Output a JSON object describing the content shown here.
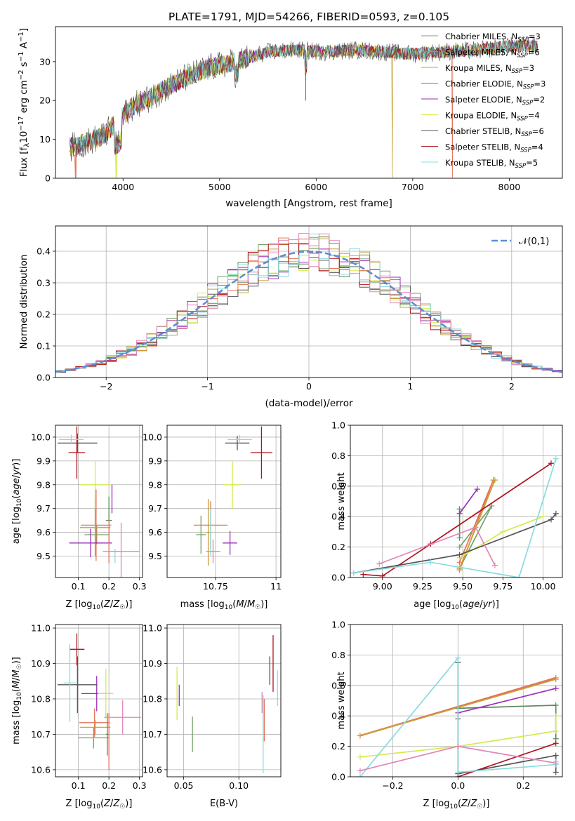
{
  "title": "PLATE=1791, MJD=54266, FIBERID=0593, z=0.105",
  "series": [
    {
      "name": "Chabrier MILES, N_SSP=3",
      "nssp": "3",
      "lib": "Chabrier MILES",
      "color": "#77a36a"
    },
    {
      "name": "Salpeter MILES, N_SSP=6",
      "nssp": "6",
      "lib": "Salpeter MILES",
      "color": "#e3735a"
    },
    {
      "name": "Kroupa MILES, N_SSP=3",
      "nssp": "3",
      "lib": "Kroupa MILES",
      "color": "#c7a136"
    },
    {
      "name": "Chabrier ELODIE, N_SSP=3",
      "nssp": "3",
      "lib": "Chabrier ELODIE",
      "color": "#5b8c5a"
    },
    {
      "name": "Salpeter ELODIE, N_SSP=2",
      "nssp": "2",
      "lib": "Salpeter ELODIE",
      "color": "#9b2fb8"
    },
    {
      "name": "Kroupa ELODIE, N_SSP=4",
      "nssp": "4",
      "lib": "Kroupa ELODIE",
      "color": "#d6ea4e"
    },
    {
      "name": "Chabrier STELIB, N_SSP=6",
      "nssp": "6",
      "lib": "Chabrier STELIB",
      "color": "#555555"
    },
    {
      "name": "Salpeter STELIB, N_SSP=4",
      "nssp": "4",
      "lib": "Salpeter STELIB",
      "color": "#b0131b"
    },
    {
      "name": "Kroupa STELIB, N_SSP=5",
      "nssp": "5",
      "lib": "Kroupa STELIB",
      "color": "#8adbe0"
    }
  ],
  "chart_data": [
    {
      "id": "spectrum",
      "type": "line",
      "xlabel": "wavelength [Angstrom, rest frame]",
      "ylabel": "Flux [f_λ10^-17 erg cm^-2 s^-1 A^-1]",
      "xlim": [
        3300,
        8550
      ],
      "ylim": [
        0,
        39
      ],
      "xticks": [
        4000,
        5000,
        6000,
        7000,
        8000
      ],
      "yticks": [
        0,
        10,
        20,
        30
      ],
      "grid": false,
      "legend": "upper right",
      "continuum": [
        [
          3450,
          8
        ],
        [
          3600,
          9
        ],
        [
          3800,
          11
        ],
        [
          3950,
          15
        ],
        [
          4100,
          18.5
        ],
        [
          4300,
          21
        ],
        [
          4500,
          24
        ],
        [
          4700,
          26.5
        ],
        [
          4900,
          28.5
        ],
        [
          5100,
          29.5
        ],
        [
          5300,
          31
        ],
        [
          5500,
          32.5
        ],
        [
          5800,
          33
        ],
        [
          6100,
          32.5
        ],
        [
          6400,
          33
        ],
        [
          6700,
          32.5
        ],
        [
          7000,
          32
        ],
        [
          7300,
          32.5
        ],
        [
          7700,
          33
        ],
        [
          8000,
          34
        ],
        [
          8300,
          34
        ]
      ],
      "dropouts": [
        {
          "series": 1,
          "x": 3510
        },
        {
          "series": 5,
          "x": 3930
        },
        {
          "series": 2,
          "x": 6790
        },
        {
          "series": 1,
          "x": 7410
        }
      ]
    },
    {
      "id": "residuals",
      "type": "histogram",
      "xlabel": "(data-model)/error",
      "ylabel": "Normed distribution",
      "xlim": [
        -2.5,
        2.5
      ],
      "ylim": [
        0,
        0.48
      ],
      "xticks": [
        -2,
        -1,
        0,
        1,
        2
      ],
      "yticks": [
        0.0,
        0.1,
        0.2,
        0.3,
        0.4
      ],
      "grid": true,
      "reference": {
        "label": "𝒩(0,1)",
        "mu": 0,
        "sigma": 1
      },
      "bin_width": 0.1
    },
    {
      "id": "age_vs_z",
      "type": "scatter",
      "xlabel": "Z [log10(Z/Z☉)]",
      "ylabel": "age [log10(age/yr)]",
      "xlim": [
        0.025,
        0.31
      ],
      "ylim": [
        9.41,
        10.05
      ],
      "xticks": [
        0.1,
        0.2,
        0.3
      ],
      "yticks": [
        9.5,
        9.6,
        9.7,
        9.8,
        9.9,
        10.0
      ],
      "grid": true,
      "points": [
        {
          "s": 0,
          "x": 0.16,
          "y": 9.59,
          "xe": 0.04,
          "ye": 0.04
        },
        {
          "s": 1,
          "x": 0.158,
          "y": 9.63,
          "xe": 0.05,
          "ye": 0.15
        },
        {
          "s": 2,
          "x": 0.155,
          "y": 9.62,
          "xe": 0.05,
          "ye": 0.12
        },
        {
          "s": 3,
          "x": 0.2,
          "y": 9.65,
          "xe": 0.01,
          "ye": 0.1
        },
        {
          "s": 4,
          "x": 0.14,
          "y": 9.555,
          "xe": 0.07,
          "ye": 0.06
        },
        {
          "s": 5,
          "x": 0.155,
          "y": 9.8,
          "xe": 0.05,
          "ye": 0.1
        },
        {
          "s": 6,
          "x": 0.097,
          "y": 9.975,
          "xe": 0.065,
          "ye": 0.04
        },
        {
          "s": 7,
          "x": 0.095,
          "y": 9.935,
          "xe": 0.027,
          "ye": 0.11
        },
        {
          "s": 8,
          "x": 0.077,
          "y": 9.99,
          "xe": 0.04,
          "ye": 0.02
        },
        {
          "s": 1,
          "x": 0.2,
          "y": 9.56,
          "xe": 0.0,
          "ye": 0.09
        },
        {
          "s": 4,
          "x": 0.21,
          "y": 9.74,
          "xe": 0.0,
          "ye": 0.06
        },
        {
          "s": 8,
          "x": 0.22,
          "y": 9.5,
          "xe": 0.0,
          "ye": 0.03
        },
        {
          "pink": true,
          "x": 0.24,
          "y": 9.52,
          "xe": 0.06,
          "ye": 0.12
        }
      ]
    },
    {
      "id": "age_vs_mass",
      "type": "scatter",
      "xlabel": "mass [log10(M/M☉)]",
      "ylabel": "",
      "xlim": [
        10.55,
        11.02
      ],
      "ylim": [
        9.41,
        10.05
      ],
      "xticks": [
        10.75,
        11.0
      ],
      "yticks": [
        9.5,
        9.6,
        9.7,
        9.8,
        9.9,
        10.0
      ],
      "grid": true,
      "points": [
        {
          "s": 0,
          "x": 10.69,
          "y": 9.59,
          "xe": 0.02,
          "ye": 0.08
        },
        {
          "s": 1,
          "x": 10.73,
          "y": 9.63,
          "xe": 0.07,
          "ye": 0.1
        },
        {
          "s": 2,
          "x": 10.72,
          "y": 9.6,
          "xe": 0.01,
          "ye": 0.14
        },
        {
          "s": 4,
          "x": 10.81,
          "y": 9.555,
          "xe": 0.03,
          "ye": 0.05
        },
        {
          "s": 5,
          "x": 10.82,
          "y": 9.8,
          "xe": 0.035,
          "ye": 0.1
        },
        {
          "s": 6,
          "x": 10.84,
          "y": 9.975,
          "xe": 0.05,
          "ye": 0.03
        },
        {
          "s": 7,
          "x": 10.94,
          "y": 9.935,
          "xe": 0.045,
          "ye": 0.11
        },
        {
          "s": 8,
          "x": 10.85,
          "y": 9.99,
          "xe": 0.05,
          "ye": 0.02
        },
        {
          "s": 8,
          "x": 10.73,
          "y": 9.6,
          "xe": 0.0,
          "ye": 0.1
        },
        {
          "pink": true,
          "x": 10.74,
          "y": 9.52,
          "xe": 0.03,
          "ye": 0.05
        }
      ]
    },
    {
      "id": "weight_vs_age",
      "type": "line",
      "xlabel": "age [log10(age/yr)]",
      "ylabel": "mass weight",
      "xlim": [
        8.8,
        10.12
      ],
      "ylim": [
        0,
        1
      ],
      "xticks": [
        9.0,
        9.25,
        9.5,
        9.75,
        10.0
      ],
      "xticklabels": [
        "9.00",
        "9.25",
        "9.50",
        "9.75",
        "10.00"
      ],
      "yticks": [
        0.0,
        0.2,
        0.4,
        0.6,
        0.8,
        1.0
      ],
      "grid": true,
      "lines": [
        {
          "s": 0,
          "pts": [
            [
              9.48,
              0.06
            ],
            [
              9.68,
              0.47
            ],
            [
              9.48,
              0.2
            ]
          ]
        },
        {
          "s": 1,
          "pts": [
            [
              9.48,
              0.05
            ],
            [
              9.69,
              0.64
            ],
            [
              9.48,
              0.1
            ]
          ]
        },
        {
          "s": 2,
          "pts": [
            [
              9.48,
              0.06
            ],
            [
              9.7,
              0.64
            ]
          ]
        },
        {
          "s": 3,
          "pts": [
            [
              9.48,
              0.26
            ],
            [
              9.48,
              0.45
            ]
          ]
        },
        {
          "s": 4,
          "pts": [
            [
              9.48,
              0.42
            ],
            [
              9.59,
              0.58
            ]
          ]
        },
        {
          "s": 5,
          "pts": [
            [
              9.48,
              0.13
            ],
            [
              9.75,
              0.3
            ],
            [
              10.0,
              0.4
            ]
          ]
        },
        {
          "s": 6,
          "pts": [
            [
              8.82,
              0.03
            ],
            [
              9.48,
              0.15
            ],
            [
              10.05,
              0.38
            ],
            [
              10.08,
              0.42
            ]
          ]
        },
        {
          "s": 7,
          "pts": [
            [
              8.88,
              0.02
            ],
            [
              9.0,
              0.01
            ],
            [
              9.3,
              0.22
            ],
            [
              10.05,
              0.75
            ]
          ]
        },
        {
          "s": 8,
          "pts": [
            [
              8.82,
              0.03
            ],
            [
              9.3,
              0.1
            ],
            [
              9.85,
              0.0
            ],
            [
              10.08,
              0.78
            ]
          ]
        },
        {
          "pink": true,
          "pts": [
            [
              8.98,
              0.09
            ],
            [
              9.58,
              0.33
            ],
            [
              9.7,
              0.08
            ]
          ]
        }
      ]
    },
    {
      "id": "mass_vs_z",
      "type": "scatter",
      "xlabel": "Z [log10(Z/Z☉)]",
      "ylabel": "mass [log10(M/M☉)]",
      "xlim": [
        0.025,
        0.31
      ],
      "ylim": [
        10.58,
        11.01
      ],
      "xticks": [
        0.1,
        0.2,
        0.3
      ],
      "yticks": [
        10.6,
        10.7,
        10.8,
        10.9,
        11.0
      ],
      "grid": true,
      "points": [
        {
          "s": 0,
          "x": 0.15,
          "y": 10.69,
          "xe": 0.05,
          "ye": 0.03
        },
        {
          "s": 1,
          "x": 0.153,
          "y": 10.733,
          "xe": 0.05,
          "ye": 0.04
        },
        {
          "s": 2,
          "x": 0.155,
          "y": 10.72,
          "xe": 0.05,
          "ye": 0.02
        },
        {
          "s": 3,
          "x": 0.195,
          "y": 10.7,
          "xe": 0.005,
          "ye": 0.06
        },
        {
          "s": 4,
          "x": 0.16,
          "y": 10.815,
          "xe": 0.05,
          "ye": 0.05
        },
        {
          "s": 5,
          "x": 0.19,
          "y": 10.815,
          "xe": 0.025,
          "ye": 0.07
        },
        {
          "s": 6,
          "x": 0.097,
          "y": 10.84,
          "xe": 0.065,
          "ye": 0.08
        },
        {
          "s": 7,
          "x": 0.095,
          "y": 10.94,
          "xe": 0.025,
          "ye": 0.045
        },
        {
          "s": 8,
          "x": 0.072,
          "y": 10.845,
          "xe": 0.02,
          "ye": 0.11
        },
        {
          "s": 1,
          "x": 0.2,
          "y": 10.68,
          "xe": 0.0,
          "ye": 0.08
        },
        {
          "pink": true,
          "x": 0.245,
          "y": 10.748,
          "xe": 0.06,
          "ye": 0.048
        }
      ]
    },
    {
      "id": "mass_vs_ebv",
      "type": "scatter",
      "xlabel": "E(B-V)",
      "ylabel": "",
      "xlim": [
        0.035,
        0.138
      ],
      "ylim": [
        10.58,
        11.01
      ],
      "xticks": [
        0.05,
        0.1
      ],
      "xticklabels": [
        "0.05",
        "0.10"
      ],
      "yticks": [
        10.6,
        10.7,
        10.8,
        10.9,
        11.0
      ],
      "grid": true,
      "points": [
        {
          "s": 5,
          "x": 0.044,
          "y": 10.815,
          "xe": 0,
          "ye": 0.075
        },
        {
          "s": 4,
          "x": 0.046,
          "y": 10.81,
          "xe": 0,
          "ye": 0.03
        },
        {
          "s": 0,
          "x": 0.058,
          "y": 10.7,
          "xe": 0,
          "ye": 0.05
        },
        {
          "pink": true,
          "x": 0.121,
          "y": 10.79,
          "xe": 0,
          "ye": 0.03
        },
        {
          "s": 1,
          "x": 0.123,
          "y": 10.74,
          "xe": 0,
          "ye": 0.06
        },
        {
          "s": 8,
          "x": 0.122,
          "y": 10.7,
          "xe": 0,
          "ye": 0.11
        },
        {
          "s": 6,
          "x": 0.128,
          "y": 10.88,
          "xe": 0,
          "ye": 0.04
        },
        {
          "s": 7,
          "x": 0.131,
          "y": 10.9,
          "xe": 0,
          "ye": 0.08
        },
        {
          "s": 8,
          "x": 0.135,
          "y": 10.83,
          "xe": 0,
          "ye": 0.05
        }
      ]
    },
    {
      "id": "weight_vs_z",
      "type": "line",
      "xlabel": "Z [log10(Z/Z☉)]",
      "ylabel": "mass weight",
      "xlim": [
        -0.33,
        0.32
      ],
      "ylim": [
        0,
        1
      ],
      "xticks": [
        -0.2,
        0.0,
        0.2
      ],
      "xticklabels": [
        "−0.2",
        "0.0",
        "0.2"
      ],
      "yticks": [
        0.0,
        0.2,
        0.4,
        0.6,
        0.8,
        1.0
      ],
      "grid": true,
      "lines": [
        {
          "s": 1,
          "pts": [
            [
              -0.3,
              0.27
            ],
            [
              0.3,
              0.65
            ]
          ],
          "w": 2.5
        },
        {
          "s": 2,
          "pts": [
            [
              -0.3,
              0.27
            ],
            [
              0.3,
              0.64
            ]
          ]
        },
        {
          "s": 3,
          "pts": [
            [
              0.0,
              0.45
            ],
            [
              0.3,
              0.47
            ],
            [
              0.3,
              0.25
            ]
          ]
        },
        {
          "s": 4,
          "pts": [
            [
              0.0,
              0.42
            ],
            [
              0.3,
              0.58
            ]
          ]
        },
        {
          "s": 5,
          "pts": [
            [
              -0.3,
              0.13
            ],
            [
              0.0,
              0.2
            ],
            [
              0.3,
              0.3
            ],
            [
              0.3,
              0.4
            ]
          ]
        },
        {
          "s": 6,
          "pts": [
            [
              0.0,
              0.75
            ],
            [
              0.0,
              0.38
            ],
            [
              0.0,
              0.02
            ],
            [
              0.3,
              0.14
            ],
            [
              0.3,
              0.03
            ]
          ]
        },
        {
          "s": 7,
          "pts": [
            [
              0.0,
              0.0
            ],
            [
              0.3,
              0.22
            ]
          ]
        },
        {
          "s": 8,
          "pts": [
            [
              -0.3,
              0.0
            ],
            [
              0.0,
              0.78
            ],
            [
              0.0,
              0.03
            ],
            [
              0.3,
              0.08
            ],
            [
              0.3,
              0.1
            ]
          ]
        },
        {
          "pink": true,
          "pts": [
            [
              -0.3,
              0.04
            ],
            [
              0.0,
              0.2
            ],
            [
              0.3,
              0.09
            ]
          ]
        }
      ]
    }
  ],
  "pink_color": "#e384b8",
  "reference_color": "#5b8fd4"
}
